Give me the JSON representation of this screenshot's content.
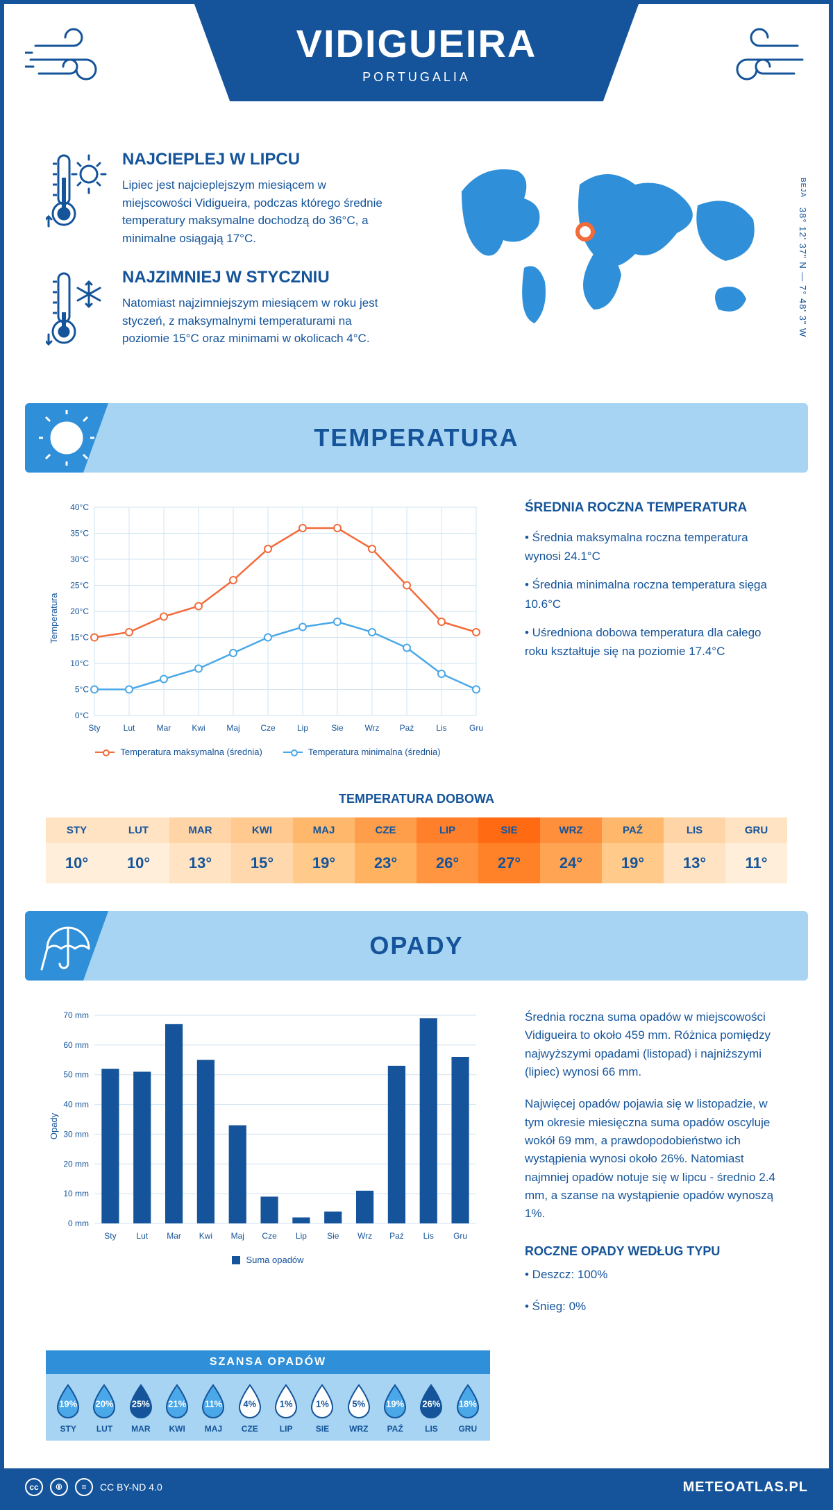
{
  "header": {
    "title": "VIDIGUEIRA",
    "subtitle": "PORTUGALIA"
  },
  "coords": {
    "lat": "38° 12' 37\" N — 7° 48' 3\" W",
    "region": "BEJA"
  },
  "warm": {
    "title": "NAJCIEPLEJ W LIPCU",
    "text": "Lipiec jest najcieplejszym miesiącem w miejscowości Vidigueira, podczas którego średnie temperatury maksymalne dochodzą do 36°C, a minimalne osiągają 17°C."
  },
  "cold": {
    "title": "NAJZIMNIEJ W STYCZNIU",
    "text": "Natomiast najzimniejszym miesiącem w roku jest styczeń, z maksymalnymi temperaturami na poziomie 15°C oraz minimami w okolicach 4°C."
  },
  "sections": {
    "temp": "TEMPERATURA",
    "prec": "OPADY"
  },
  "months": [
    "Sty",
    "Lut",
    "Mar",
    "Kwi",
    "Maj",
    "Cze",
    "Lip",
    "Sie",
    "Wrz",
    "Paź",
    "Lis",
    "Gru"
  ],
  "months_upper": [
    "STY",
    "LUT",
    "MAR",
    "KWI",
    "MAJ",
    "CZE",
    "LIP",
    "SIE",
    "WRZ",
    "PAŹ",
    "LIS",
    "GRU"
  ],
  "temp_chart": {
    "type": "line",
    "y_title": "Temperatura",
    "ylim": [
      0,
      40
    ],
    "ytick_step": 5,
    "y_ticks": [
      "0°C",
      "5°C",
      "10°C",
      "15°C",
      "20°C",
      "25°C",
      "30°C",
      "35°C",
      "40°C"
    ],
    "max_series": {
      "label": "Temperatura maksymalna (średnia)",
      "color": "#f26b3a",
      "values": [
        15,
        16,
        19,
        21,
        26,
        32,
        36,
        36,
        32,
        25,
        18,
        16
      ]
    },
    "min_series": {
      "label": "Temperatura minimalna (średnia)",
      "color": "#4aa8e8",
      "values": [
        5,
        5,
        7,
        9,
        12,
        15,
        17,
        18,
        16,
        13,
        8,
        5
      ]
    },
    "grid_color": "#cfe3f2",
    "bg": "#ffffff",
    "line_width": 2.5,
    "marker_size": 5
  },
  "temp_side": {
    "title": "ŚREDNIA ROCZNA TEMPERATURA",
    "b1": "• Średnia maksymalna roczna temperatura wynosi 24.1°C",
    "b2": "• Średnia minimalna roczna temperatura sięga 10.6°C",
    "b3": "• Uśredniona dobowa temperatura dla całego roku kształtuje się na poziomie 17.4°C"
  },
  "daily": {
    "title": "TEMPERATURA DOBOWA",
    "values": [
      "10°",
      "10°",
      "13°",
      "15°",
      "19°",
      "23°",
      "26°",
      "27°",
      "24°",
      "19°",
      "13°",
      "11°"
    ],
    "header_colors": [
      "#ffe3c2",
      "#ffe3c2",
      "#ffd5a8",
      "#ffc98f",
      "#ffb86b",
      "#ff9e4a",
      "#ff7f2a",
      "#ff6a12",
      "#ff8f3a",
      "#ffb86b",
      "#ffd5a8",
      "#ffe3c2"
    ],
    "value_colors": [
      "#ffeed9",
      "#ffeed9",
      "#ffe3c2",
      "#ffd9ad",
      "#ffca8a",
      "#ffb260",
      "#ff9540",
      "#ff8128",
      "#ffa452",
      "#ffca8a",
      "#ffe3c2",
      "#ffeed9"
    ]
  },
  "prec_chart": {
    "type": "bar",
    "y_title": "Opady",
    "ylim": [
      0,
      70
    ],
    "ytick_step": 10,
    "y_ticks": [
      "0 mm",
      "10 mm",
      "20 mm",
      "30 mm",
      "40 mm",
      "50 mm",
      "60 mm",
      "70 mm"
    ],
    "values": [
      52,
      51,
      67,
      55,
      33,
      9,
      2,
      4,
      11,
      53,
      69,
      56
    ],
    "bar_color": "#15549a",
    "grid_color": "#cfe3f2",
    "legend": "Suma opadów",
    "bar_width": 0.55
  },
  "prec_side": {
    "p1": "Średnia roczna suma opadów w miejscowości Vidigueira to około 459 mm. Różnica pomiędzy najwyższymi opadami (listopad) i najniższymi (lipiec) wynosi 66 mm.",
    "p2": "Najwięcej opadów pojawia się w listopadzie, w tym okresie miesięczna suma opadów oscyluje wokół 69 mm, a prawdopodobieństwo ich wystąpienia wynosi około 26%. Natomiast najmniej opadów notuje się w lipcu - średnio 2.4 mm, a szanse na wystąpienie opadów wynoszą 1%.",
    "type_title": "ROCZNE OPADY WEDŁUG TYPU",
    "rain": "• Deszcz: 100%",
    "snow": "• Śnieg: 0%"
  },
  "chance": {
    "title": "SZANSA OPADÓW",
    "values": [
      19,
      20,
      25,
      21,
      11,
      4,
      1,
      1,
      5,
      19,
      26,
      18
    ],
    "fill_dark": "#15549a",
    "fill_mid": "#4aa8e8",
    "fill_light": "#ffffff",
    "outline": "#15549a"
  },
  "footer": {
    "license": "CC BY-ND 4.0",
    "site": "METEOATLAS.PL"
  },
  "colors": {
    "brand": "#15549a",
    "accent": "#2f8fd8",
    "light": "#a6d4f2"
  }
}
